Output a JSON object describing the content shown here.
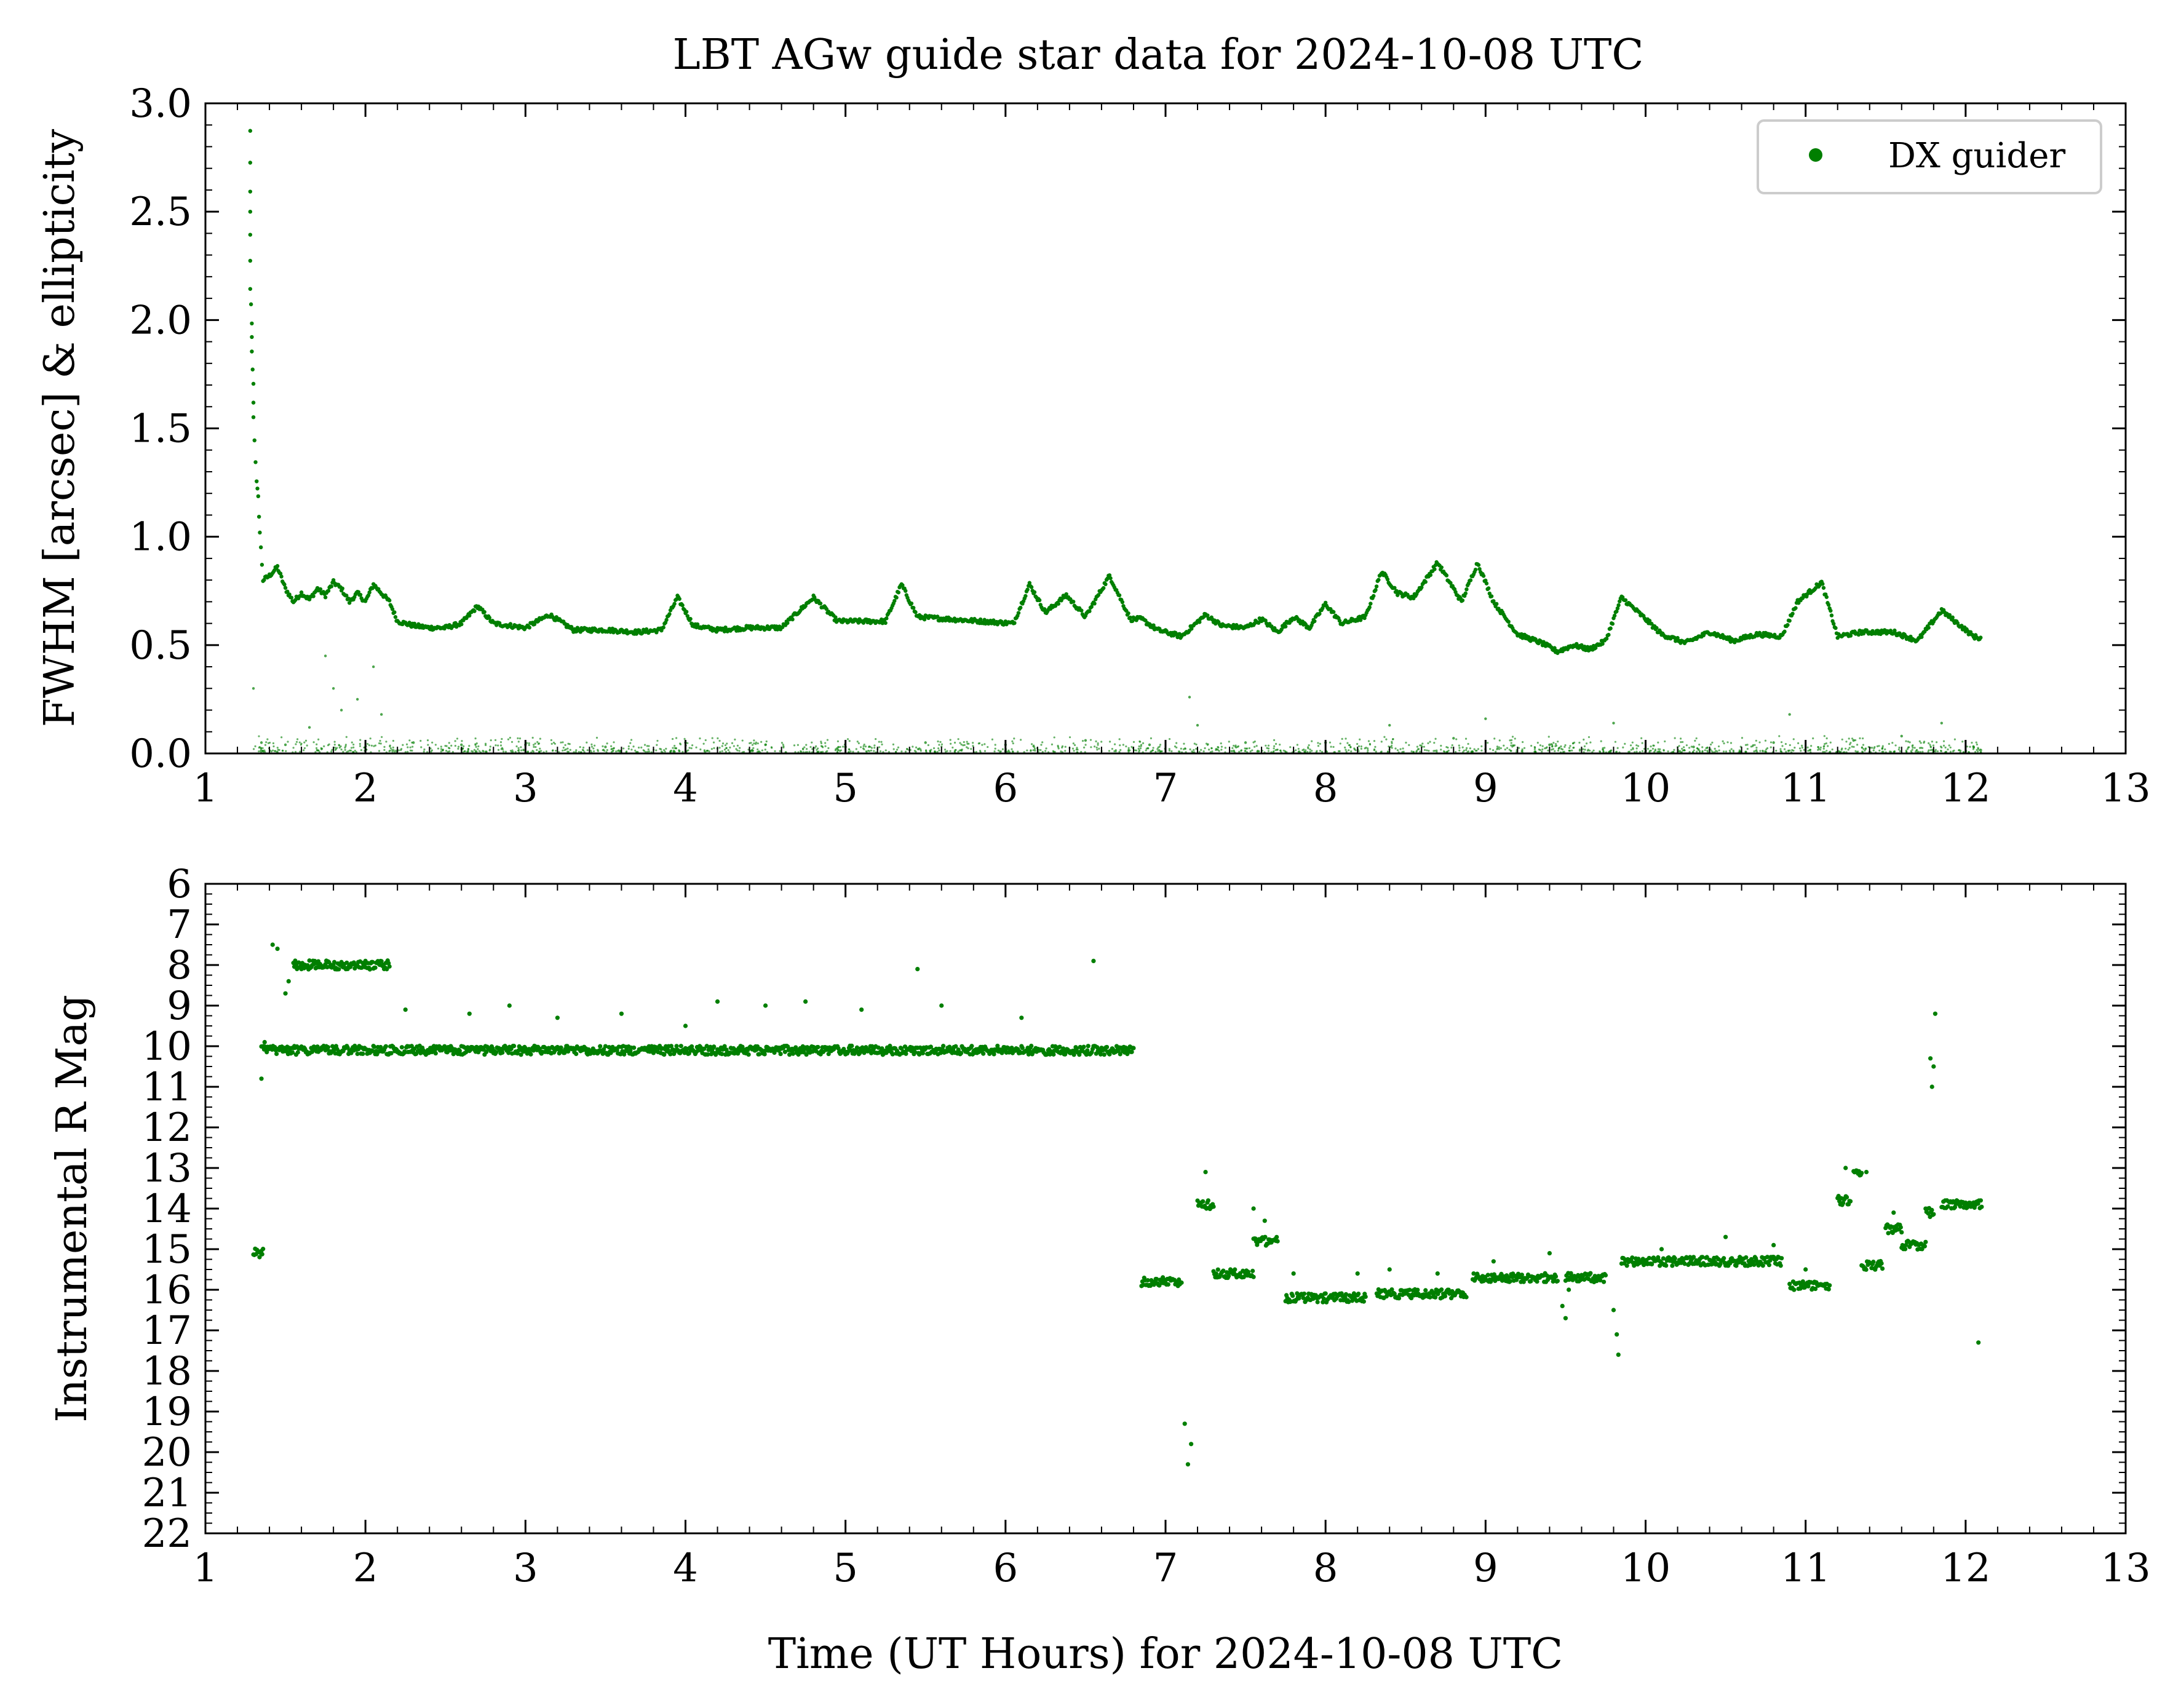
{
  "title": "LBT AGw guide star data for 2024-10-08 UTC",
  "colors": {
    "series": "#007f00",
    "axis": "#000000",
    "legend_border": "#cccccc"
  },
  "chart_data": [
    {
      "type": "scatter",
      "ylabel": "FWHM [arcsec] & ellipticity",
      "xlabel": "",
      "xlim": [
        1,
        13
      ],
      "ylim": [
        0,
        3.0
      ],
      "xticks": [
        "1",
        "2",
        "3",
        "4",
        "5",
        "6",
        "7",
        "8",
        "9",
        "10",
        "11",
        "12",
        "13"
      ],
      "yticks": [
        "0.0",
        "0.5",
        "1.0",
        "1.5",
        "2.0",
        "2.5",
        "3.0"
      ],
      "legend": {
        "position": "top-right",
        "entries": [
          "DX guider"
        ]
      },
      "series": [
        {
          "name": "DX guider",
          "role": "FWHM",
          "points": [
            [
              1.28,
              2.87
            ],
            [
              1.28,
              2.59
            ],
            [
              1.28,
              2.39
            ],
            [
              1.28,
              2.15
            ],
            [
              1.29,
              1.98
            ],
            [
              1.29,
              1.85
            ],
            [
              1.3,
              1.7
            ],
            [
              1.3,
              1.55
            ],
            [
              1.32,
              1.25
            ],
            [
              1.33,
              1.18
            ],
            [
              1.34,
              1.02
            ],
            [
              1.36,
              0.8
            ],
            [
              1.4,
              0.82
            ],
            [
              1.45,
              0.86
            ],
            [
              1.5,
              0.76
            ],
            [
              1.55,
              0.7
            ],
            [
              1.6,
              0.74
            ],
            [
              1.65,
              0.71
            ],
            [
              1.7,
              0.76
            ],
            [
              1.75,
              0.73
            ],
            [
              1.8,
              0.79
            ],
            [
              1.85,
              0.76
            ],
            [
              1.9,
              0.7
            ],
            [
              1.95,
              0.74
            ],
            [
              2.0,
              0.7
            ],
            [
              2.05,
              0.78
            ],
            [
              2.1,
              0.74
            ],
            [
              2.15,
              0.7
            ],
            [
              2.2,
              0.61
            ],
            [
              2.3,
              0.59
            ],
            [
              2.4,
              0.58
            ],
            [
              2.5,
              0.58
            ],
            [
              2.6,
              0.6
            ],
            [
              2.7,
              0.68
            ],
            [
              2.8,
              0.6
            ],
            [
              2.9,
              0.59
            ],
            [
              3.0,
              0.58
            ],
            [
              3.15,
              0.64
            ],
            [
              3.3,
              0.57
            ],
            [
              3.5,
              0.57
            ],
            [
              3.7,
              0.56
            ],
            [
              3.85,
              0.57
            ],
            [
              3.95,
              0.72
            ],
            [
              4.05,
              0.59
            ],
            [
              4.2,
              0.57
            ],
            [
              4.4,
              0.58
            ],
            [
              4.6,
              0.58
            ],
            [
              4.8,
              0.72
            ],
            [
              4.95,
              0.61
            ],
            [
              5.1,
              0.61
            ],
            [
              5.25,
              0.61
            ],
            [
              5.35,
              0.78
            ],
            [
              5.45,
              0.63
            ],
            [
              5.65,
              0.62
            ],
            [
              5.85,
              0.61
            ],
            [
              6.05,
              0.6
            ],
            [
              6.15,
              0.78
            ],
            [
              6.25,
              0.65
            ],
            [
              6.38,
              0.73
            ],
            [
              6.5,
              0.63
            ],
            [
              6.65,
              0.82
            ],
            [
              6.78,
              0.62
            ],
            [
              6.85,
              0.62
            ],
            [
              6.95,
              0.57
            ],
            [
              7.1,
              0.54
            ],
            [
              7.25,
              0.64
            ],
            [
              7.35,
              0.59
            ],
            [
              7.5,
              0.58
            ],
            [
              7.6,
              0.62
            ],
            [
              7.7,
              0.56
            ],
            [
              7.8,
              0.63
            ],
            [
              7.9,
              0.58
            ],
            [
              8.0,
              0.69
            ],
            [
              8.1,
              0.6
            ],
            [
              8.25,
              0.63
            ],
            [
              8.35,
              0.84
            ],
            [
              8.45,
              0.74
            ],
            [
              8.55,
              0.72
            ],
            [
              8.7,
              0.88
            ],
            [
              8.85,
              0.7
            ],
            [
              8.95,
              0.88
            ],
            [
              9.05,
              0.7
            ],
            [
              9.2,
              0.55
            ],
            [
              9.35,
              0.51
            ],
            [
              9.45,
              0.47
            ],
            [
              9.55,
              0.5
            ],
            [
              9.65,
              0.48
            ],
            [
              9.75,
              0.52
            ],
            [
              9.85,
              0.72
            ],
            [
              10.0,
              0.62
            ],
            [
              10.1,
              0.55
            ],
            [
              10.25,
              0.51
            ],
            [
              10.4,
              0.56
            ],
            [
              10.55,
              0.52
            ],
            [
              10.7,
              0.55
            ],
            [
              10.85,
              0.54
            ],
            [
              10.95,
              0.7
            ],
            [
              11.1,
              0.79
            ],
            [
              11.2,
              0.54
            ],
            [
              11.35,
              0.56
            ],
            [
              11.55,
              0.56
            ],
            [
              11.7,
              0.52
            ],
            [
              11.85,
              0.66
            ],
            [
              11.95,
              0.6
            ],
            [
              12.05,
              0.54
            ],
            [
              12.1,
              0.53
            ]
          ]
        },
        {
          "name": "",
          "role": "ellipticity",
          "points": [
            [
              1.3,
              0.3
            ],
            [
              1.35,
              0.05
            ],
            [
              1.5,
              0.04
            ],
            [
              1.65,
              0.12
            ],
            [
              1.75,
              0.45
            ],
            [
              1.8,
              0.3
            ],
            [
              1.85,
              0.2
            ],
            [
              1.95,
              0.25
            ],
            [
              2.05,
              0.4
            ],
            [
              2.1,
              0.18
            ],
            [
              2.3,
              0.05
            ],
            [
              2.6,
              0.04
            ],
            [
              3.0,
              0.04
            ],
            [
              3.5,
              0.03
            ],
            [
              4.0,
              0.05
            ],
            [
              4.5,
              0.04
            ],
            [
              5.0,
              0.03
            ],
            [
              5.5,
              0.05
            ],
            [
              6.0,
              0.04
            ],
            [
              6.5,
              0.06
            ],
            [
              6.9,
              0.04
            ],
            [
              7.15,
              0.26
            ],
            [
              7.2,
              0.13
            ],
            [
              7.5,
              0.05
            ],
            [
              8.0,
              0.05
            ],
            [
              8.4,
              0.13
            ],
            [
              8.8,
              0.07
            ],
            [
              9.0,
              0.16
            ],
            [
              9.4,
              0.04
            ],
            [
              9.8,
              0.14
            ],
            [
              10.3,
              0.03
            ],
            [
              10.8,
              0.05
            ],
            [
              10.9,
              0.18
            ],
            [
              11.3,
              0.06
            ],
            [
              11.6,
              0.08
            ],
            [
              11.85,
              0.14
            ],
            [
              12.05,
              0.03
            ]
          ]
        }
      ]
    },
    {
      "type": "scatter",
      "ylabel": "Instrumental R Mag",
      "xlabel": "Time (UT Hours) for 2024-10-08 UTC",
      "xlim": [
        1,
        13
      ],
      "ylim": [
        22,
        6
      ],
      "inverted_y": true,
      "xticks": [
        "1",
        "2",
        "3",
        "4",
        "5",
        "6",
        "7",
        "8",
        "9",
        "10",
        "11",
        "12",
        "13"
      ],
      "yticks": [
        "6",
        "7",
        "8",
        "9",
        "10",
        "11",
        "12",
        "13",
        "14",
        "15",
        "16",
        "17",
        "18",
        "19",
        "20",
        "21",
        "22"
      ],
      "series": [
        {
          "name": "DX guider",
          "segments": [
            {
              "x": [
                1.3,
                1.36
              ],
              "y": 15.1
            },
            {
              "x": [
                1.35,
                6.8
              ],
              "y": 10.1
            },
            {
              "x": [
                1.55,
                2.15
              ],
              "y": 8.0
            },
            {
              "x": [
                6.85,
                7.1
              ],
              "y": 15.8
            },
            {
              "x": [
                7.2,
                7.3
              ],
              "y": 13.9
            },
            {
              "x": [
                7.3,
                7.55
              ],
              "y": 15.6
            },
            {
              "x": [
                7.55,
                7.7
              ],
              "y": 14.8
            },
            {
              "x": [
                7.75,
                8.25
              ],
              "y": 16.2
            },
            {
              "x": [
                8.32,
                8.88
              ],
              "y": 16.1
            },
            {
              "x": [
                8.92,
                9.45
              ],
              "y": 15.7
            },
            {
              "x": [
                9.5,
                9.75
              ],
              "y": 15.7
            },
            {
              "x": [
                9.85,
                10.85
              ],
              "y": 15.3
            },
            {
              "x": [
                10.9,
                11.15
              ],
              "y": 15.9
            },
            {
              "x": [
                11.2,
                11.28
              ],
              "y": 13.8
            },
            {
              "x": [
                11.3,
                11.35
              ],
              "y": 13.1
            },
            {
              "x": [
                11.35,
                11.48
              ],
              "y": 15.4
            },
            {
              "x": [
                11.5,
                11.6
              ],
              "y": 14.5
            },
            {
              "x": [
                11.6,
                11.75
              ],
              "y": 14.9
            },
            {
              "x": [
                11.75,
                11.8
              ],
              "y": 14.1
            },
            {
              "x": [
                11.85,
                12.1
              ],
              "y": 13.9
            }
          ],
          "points": [
            [
              1.35,
              10.8
            ],
            [
              1.37,
              9.9
            ],
            [
              1.42,
              7.5
            ],
            [
              1.45,
              7.6
            ],
            [
              1.5,
              8.7
            ],
            [
              1.52,
              8.4
            ],
            [
              1.6,
              8.1
            ],
            [
              2.0,
              7.9
            ],
            [
              2.25,
              9.1
            ],
            [
              2.65,
              9.2
            ],
            [
              2.9,
              9.0
            ],
            [
              3.2,
              9.3
            ],
            [
              3.6,
              9.2
            ],
            [
              4.0,
              9.5
            ],
            [
              4.2,
              8.9
            ],
            [
              4.5,
              9.0
            ],
            [
              4.75,
              8.9
            ],
            [
              5.1,
              9.1
            ],
            [
              5.45,
              8.1
            ],
            [
              5.6,
              9.0
            ],
            [
              6.1,
              9.3
            ],
            [
              6.55,
              7.9
            ],
            [
              7.12,
              19.3
            ],
            [
              7.14,
              20.3
            ],
            [
              7.16,
              19.8
            ],
            [
              7.25,
              13.1
            ],
            [
              7.55,
              14.0
            ],
            [
              7.62,
              14.3
            ],
            [
              7.8,
              15.6
            ],
            [
              8.2,
              15.6
            ],
            [
              8.4,
              15.5
            ],
            [
              8.7,
              15.6
            ],
            [
              9.05,
              15.3
            ],
            [
              9.4,
              15.1
            ],
            [
              9.48,
              16.4
            ],
            [
              9.5,
              16.7
            ],
            [
              9.52,
              16.0
            ],
            [
              9.8,
              16.5
            ],
            [
              9.82,
              17.1
            ],
            [
              9.83,
              17.6
            ],
            [
              10.1,
              15.0
            ],
            [
              10.5,
              14.7
            ],
            [
              10.8,
              14.9
            ],
            [
              11.0,
              15.5
            ],
            [
              11.25,
              13.0
            ],
            [
              11.38,
              13.1
            ],
            [
              11.55,
              14.1
            ],
            [
              11.78,
              10.3
            ],
            [
              11.79,
              11.0
            ],
            [
              11.8,
              10.5
            ],
            [
              11.81,
              9.2
            ],
            [
              12.08,
              17.3
            ]
          ]
        }
      ]
    }
  ]
}
